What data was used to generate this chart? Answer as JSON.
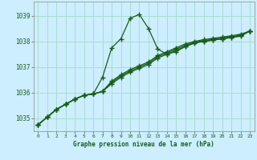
{
  "bg_color": "#cceeff",
  "grid_color": "#aaddcc",
  "line_color": "#1a5c1a",
  "title": "Graphe pression niveau de la mer (hPa)",
  "xlim": [
    -0.5,
    23.5
  ],
  "ylim": [
    1034.5,
    1039.55
  ],
  "yticks": [
    1035,
    1036,
    1037,
    1038,
    1039
  ],
  "xticks": [
    0,
    1,
    2,
    3,
    4,
    5,
    6,
    7,
    8,
    9,
    10,
    11,
    12,
    13,
    14,
    15,
    16,
    17,
    18,
    19,
    20,
    21,
    22,
    23
  ],
  "series1_x": [
    0,
    1,
    2,
    3,
    4,
    5,
    6,
    7,
    8,
    9,
    10,
    11,
    12,
    13,
    14,
    15,
    16,
    17,
    18,
    19,
    20,
    21,
    22,
    23
  ],
  "series1_y": [
    1034.75,
    1035.05,
    1035.35,
    1035.55,
    1035.75,
    1035.9,
    1035.95,
    1036.6,
    1037.75,
    1038.1,
    1038.9,
    1039.05,
    1038.5,
    1037.7,
    1037.5,
    1037.6,
    1037.8,
    1037.95,
    1038.0,
    1038.05,
    1038.1,
    1038.15,
    1038.25,
    1038.4
  ],
  "series2_x": [
    0,
    1,
    2,
    3,
    4,
    5,
    6,
    7,
    8,
    9,
    10,
    11,
    12,
    13,
    14,
    15,
    16,
    17,
    18,
    19,
    20,
    21,
    22,
    23
  ],
  "series2_y": [
    1034.75,
    1035.05,
    1035.35,
    1035.55,
    1035.75,
    1035.9,
    1035.95,
    1036.05,
    1036.45,
    1036.7,
    1036.9,
    1037.05,
    1037.2,
    1037.45,
    1037.6,
    1037.75,
    1037.9,
    1038.0,
    1038.07,
    1038.12,
    1038.17,
    1038.22,
    1038.28,
    1038.4
  ],
  "series3_x": [
    0,
    1,
    2,
    3,
    4,
    5,
    6,
    7,
    8,
    9,
    10,
    11,
    12,
    13,
    14,
    15,
    16,
    17,
    18,
    19,
    20,
    21,
    22,
    23
  ],
  "series3_y": [
    1034.75,
    1035.05,
    1035.35,
    1035.55,
    1035.75,
    1035.9,
    1035.95,
    1036.05,
    1036.4,
    1036.65,
    1036.85,
    1037.0,
    1037.15,
    1037.4,
    1037.55,
    1037.7,
    1037.85,
    1037.97,
    1038.03,
    1038.08,
    1038.13,
    1038.18,
    1038.24,
    1038.4
  ],
  "series4_x": [
    0,
    1,
    2,
    3,
    4,
    5,
    6,
    7,
    8,
    9,
    10,
    11,
    12,
    13,
    14,
    15,
    16,
    17,
    18,
    19,
    20,
    21,
    22,
    23
  ],
  "series4_y": [
    1034.75,
    1035.05,
    1035.35,
    1035.55,
    1035.75,
    1035.9,
    1035.95,
    1036.05,
    1036.35,
    1036.6,
    1036.8,
    1036.95,
    1037.1,
    1037.35,
    1037.5,
    1037.65,
    1037.8,
    1037.93,
    1038.0,
    1038.05,
    1038.1,
    1038.15,
    1038.2,
    1038.4
  ]
}
